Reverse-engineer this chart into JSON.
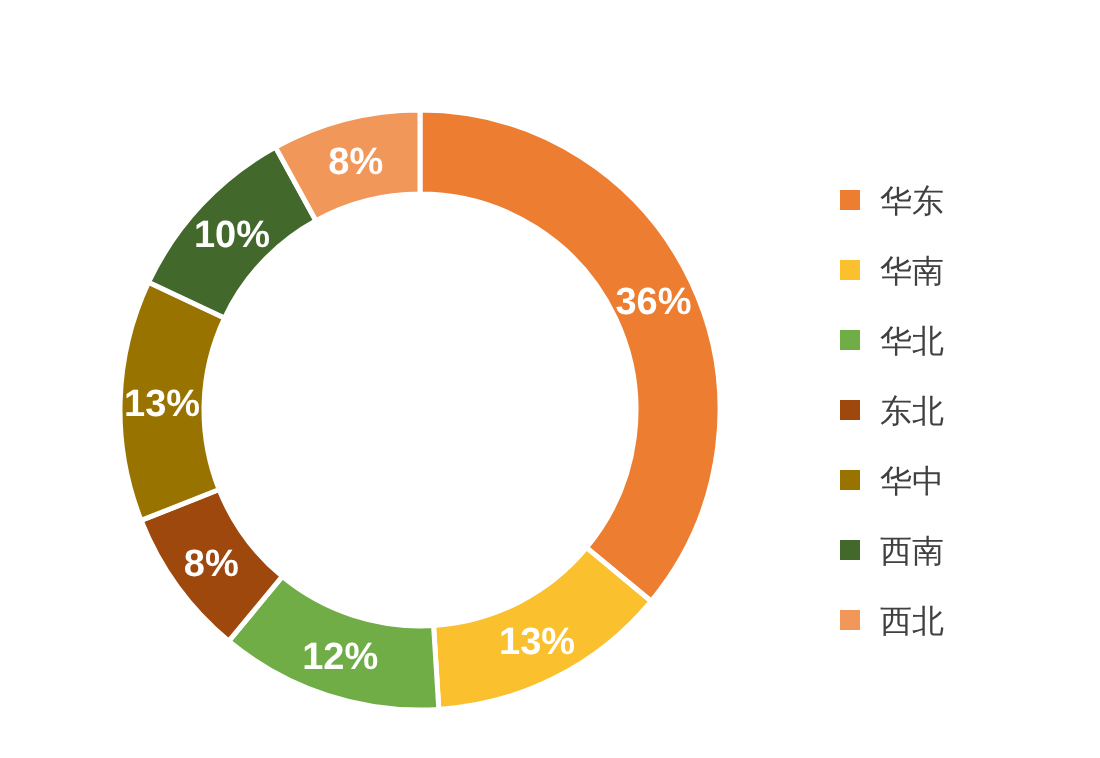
{
  "chart_data": {
    "type": "donut",
    "categories": [
      "华东",
      "华南",
      "华北",
      "东北",
      "华中",
      "西南",
      "西北"
    ],
    "values": [
      36,
      13,
      12,
      8,
      13,
      10,
      8
    ],
    "value_labels": [
      "36%",
      "13%",
      "12%",
      "8%",
      "13%",
      "10%",
      "8%"
    ],
    "colors": [
      "#ed7d31",
      "#fbc02d",
      "#70ad47",
      "#9e480e",
      "#997300",
      "#43682b",
      "#f1975a"
    ],
    "legend": "right"
  }
}
